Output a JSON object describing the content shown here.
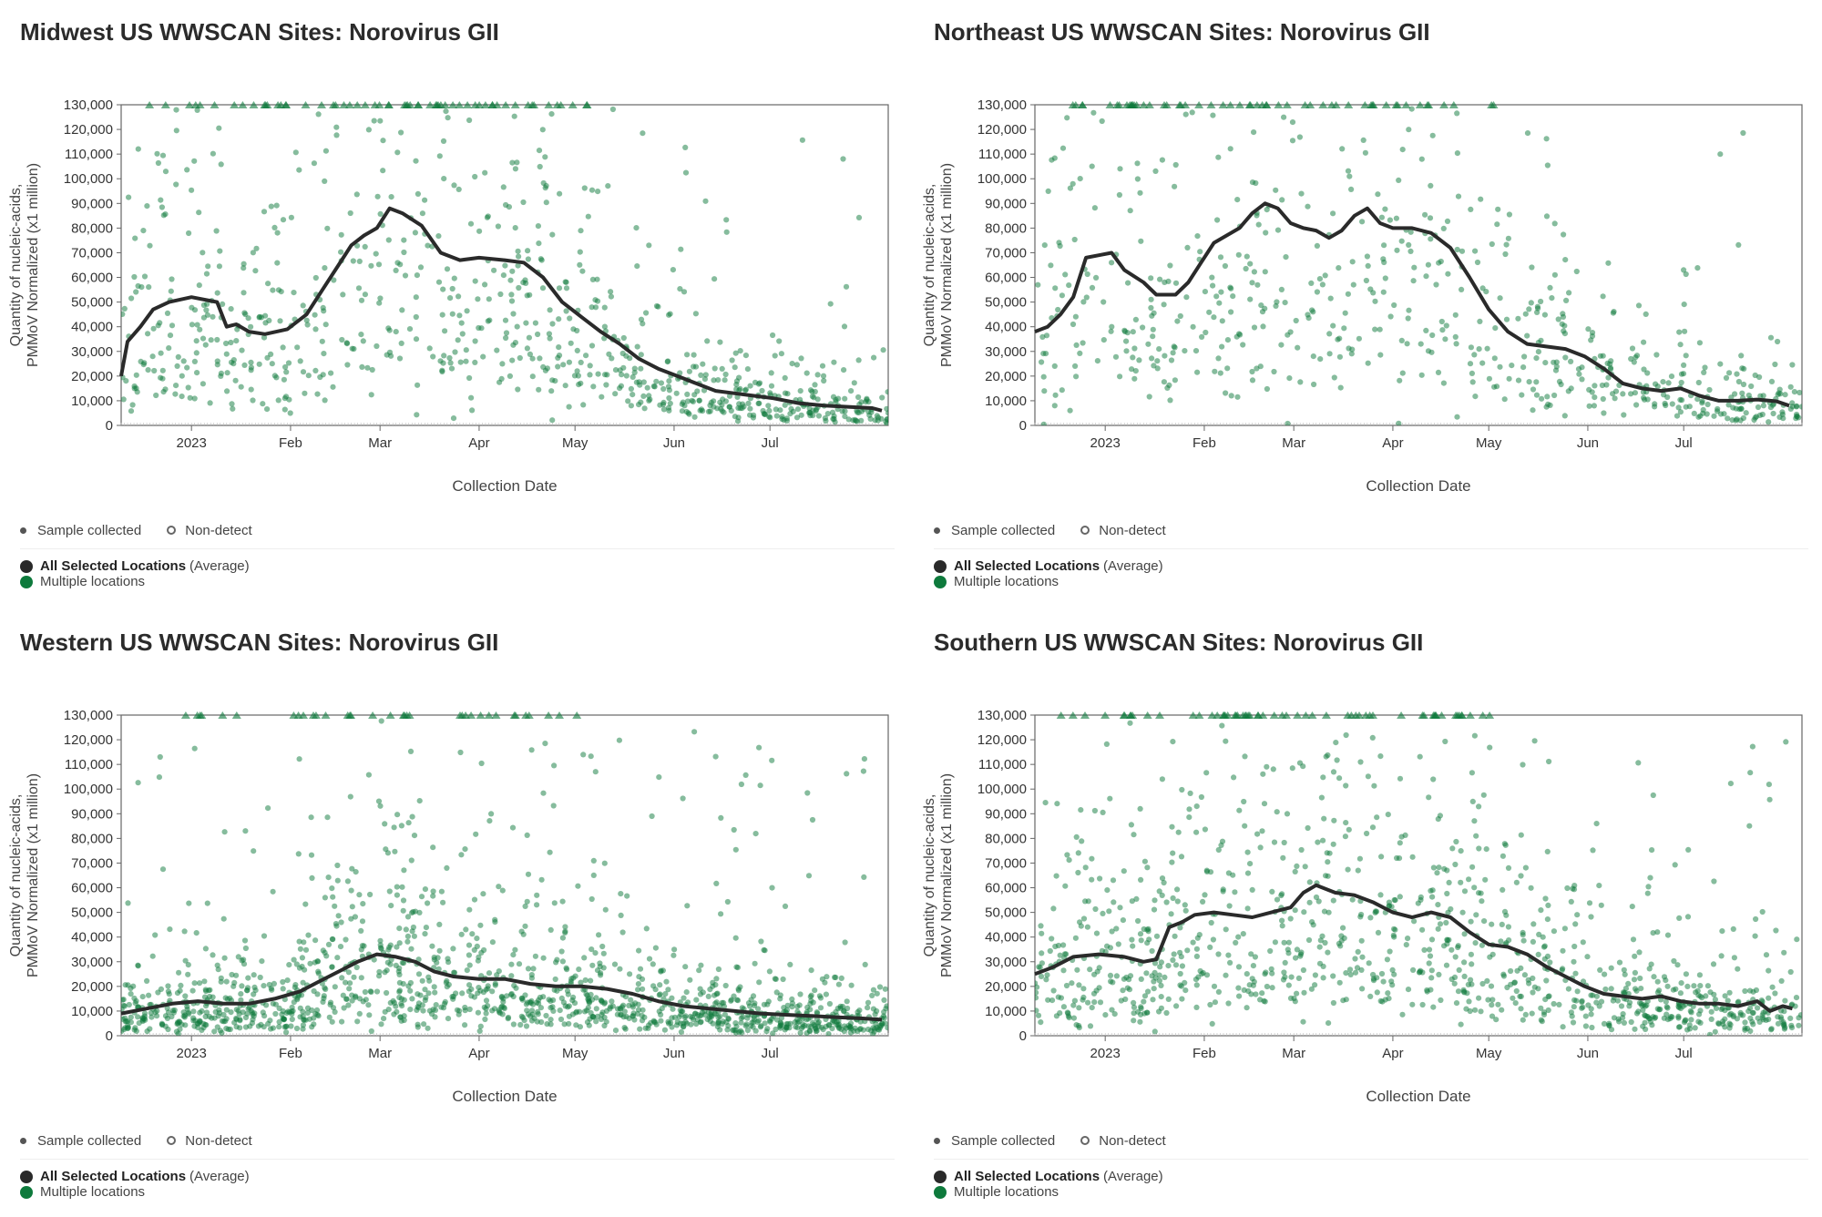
{
  "legend": {
    "sample_collected": "Sample collected",
    "non_detect": "Non-detect",
    "all_selected_bold": "All Selected Locations",
    "all_selected_suffix": "(Average)",
    "multiple_locations": "Multiple locations"
  },
  "colors": {
    "scatter": "#0e7a3c",
    "average_line": "#2a2a2a",
    "frame": "#666666"
  },
  "chart_data": [
    {
      "type": "scatter",
      "title": "Midwest US WWSCAN Sites: Norovirus GII",
      "xlabel": "Collection Date",
      "ylabel_line1": "Quantity of nucleic-acids,",
      "ylabel_line2": "PMMoV Normalized (x1 million)",
      "xlim_days": [
        0,
        240
      ],
      "ylim": [
        0,
        130000
      ],
      "x_ticks": [
        {
          "day": 22,
          "label": "2023"
        },
        {
          "day": 53,
          "label": "Feb"
        },
        {
          "day": 81,
          "label": "Mar"
        },
        {
          "day": 112,
          "label": "Apr"
        },
        {
          "day": 142,
          "label": "May"
        },
        {
          "day": 173,
          "label": "Jun"
        },
        {
          "day": 203,
          "label": "Jul"
        }
      ],
      "y_ticks": [
        0,
        10000,
        20000,
        30000,
        40000,
        50000,
        60000,
        70000,
        80000,
        90000,
        100000,
        110000,
        120000,
        130000
      ],
      "average_series": [
        [
          0,
          20000
        ],
        [
          2,
          34000
        ],
        [
          6,
          40000
        ],
        [
          10,
          47000
        ],
        [
          15,
          50000
        ],
        [
          22,
          52000
        ],
        [
          30,
          50000
        ],
        [
          33,
          40000
        ],
        [
          36,
          41000
        ],
        [
          40,
          38000
        ],
        [
          45,
          37000
        ],
        [
          52,
          39000
        ],
        [
          58,
          45000
        ],
        [
          63,
          55000
        ],
        [
          68,
          65000
        ],
        [
          72,
          73000
        ],
        [
          76,
          77000
        ],
        [
          80,
          80000
        ],
        [
          84,
          88000
        ],
        [
          88,
          86000
        ],
        [
          94,
          81000
        ],
        [
          100,
          70000
        ],
        [
          106,
          67000
        ],
        [
          112,
          68000
        ],
        [
          120,
          67000
        ],
        [
          126,
          66000
        ],
        [
          132,
          60000
        ],
        [
          138,
          50000
        ],
        [
          144,
          44000
        ],
        [
          150,
          38000
        ],
        [
          156,
          33000
        ],
        [
          162,
          27000
        ],
        [
          168,
          23000
        ],
        [
          174,
          20000
        ],
        [
          180,
          17000
        ],
        [
          186,
          14000
        ],
        [
          192,
          13000
        ],
        [
          198,
          12000
        ],
        [
          204,
          11000
        ],
        [
          212,
          9000
        ],
        [
          220,
          8000
        ],
        [
          228,
          7500
        ],
        [
          235,
          7000
        ],
        [
          238,
          6000
        ]
      ],
      "series_name": "Multiple locations",
      "average_name": "All Selected Locations (Average)"
    },
    {
      "type": "scatter",
      "title": "Northeast US WWSCAN Sites: Norovirus GII",
      "xlabel": "Collection Date",
      "ylabel_line1": "Quantity of nucleic-acids,",
      "ylabel_line2": "PMMoV Normalized (x1 million)",
      "xlim_days": [
        0,
        240
      ],
      "ylim": [
        0,
        130000
      ],
      "x_ticks": [
        {
          "day": 22,
          "label": "2023"
        },
        {
          "day": 53,
          "label": "Feb"
        },
        {
          "day": 81,
          "label": "Mar"
        },
        {
          "day": 112,
          "label": "Apr"
        },
        {
          "day": 142,
          "label": "May"
        },
        {
          "day": 173,
          "label": "Jun"
        },
        {
          "day": 203,
          "label": "Jul"
        }
      ],
      "y_ticks": [
        0,
        10000,
        20000,
        30000,
        40000,
        50000,
        60000,
        70000,
        80000,
        90000,
        100000,
        110000,
        120000,
        130000
      ],
      "average_series": [
        [
          0,
          38000
        ],
        [
          4,
          40000
        ],
        [
          8,
          45000
        ],
        [
          12,
          52000
        ],
        [
          16,
          68000
        ],
        [
          20,
          69000
        ],
        [
          24,
          70000
        ],
        [
          28,
          63000
        ],
        [
          34,
          58000
        ],
        [
          38,
          53000
        ],
        [
          44,
          53000
        ],
        [
          48,
          58000
        ],
        [
          52,
          66000
        ],
        [
          56,
          74000
        ],
        [
          60,
          77000
        ],
        [
          64,
          80000
        ],
        [
          68,
          86000
        ],
        [
          72,
          90000
        ],
        [
          76,
          88000
        ],
        [
          80,
          82000
        ],
        [
          84,
          80000
        ],
        [
          88,
          79000
        ],
        [
          92,
          76000
        ],
        [
          96,
          79000
        ],
        [
          100,
          85000
        ],
        [
          104,
          88000
        ],
        [
          108,
          82000
        ],
        [
          112,
          80000
        ],
        [
          118,
          80000
        ],
        [
          124,
          78000
        ],
        [
          130,
          72000
        ],
        [
          136,
          60000
        ],
        [
          142,
          47000
        ],
        [
          148,
          38000
        ],
        [
          154,
          33000
        ],
        [
          160,
          32000
        ],
        [
          166,
          31000
        ],
        [
          172,
          28000
        ],
        [
          178,
          23000
        ],
        [
          184,
          17000
        ],
        [
          190,
          15000
        ],
        [
          196,
          14000
        ],
        [
          202,
          15000
        ],
        [
          208,
          12000
        ],
        [
          214,
          10000
        ],
        [
          220,
          10000
        ],
        [
          226,
          10500
        ],
        [
          232,
          9800
        ],
        [
          236,
          8000
        ]
      ],
      "series_name": "Multiple locations",
      "average_name": "All Selected Locations (Average)"
    },
    {
      "type": "scatter",
      "title": "Western US WWSCAN Sites: Norovirus GII",
      "xlabel": "Collection Date",
      "ylabel_line1": "Quantity of nucleic-acids,",
      "ylabel_line2": "PMMoV Normalized (x1 million)",
      "xlim_days": [
        0,
        240
      ],
      "ylim": [
        0,
        130000
      ],
      "x_ticks": [
        {
          "day": 22,
          "label": "2023"
        },
        {
          "day": 53,
          "label": "Feb"
        },
        {
          "day": 81,
          "label": "Mar"
        },
        {
          "day": 112,
          "label": "Apr"
        },
        {
          "day": 142,
          "label": "May"
        },
        {
          "day": 173,
          "label": "Jun"
        },
        {
          "day": 203,
          "label": "Jul"
        }
      ],
      "y_ticks": [
        0,
        10000,
        20000,
        30000,
        40000,
        50000,
        60000,
        70000,
        80000,
        90000,
        100000,
        110000,
        120000,
        130000
      ],
      "average_series": [
        [
          0,
          9000
        ],
        [
          8,
          11000
        ],
        [
          16,
          13000
        ],
        [
          24,
          14000
        ],
        [
          32,
          13000
        ],
        [
          40,
          13000
        ],
        [
          48,
          15000
        ],
        [
          56,
          18000
        ],
        [
          62,
          22000
        ],
        [
          68,
          26000
        ],
        [
          74,
          30000
        ],
        [
          80,
          33000
        ],
        [
          86,
          32000
        ],
        [
          92,
          30000
        ],
        [
          98,
          26000
        ],
        [
          104,
          24000
        ],
        [
          112,
          23000
        ],
        [
          120,
          23000
        ],
        [
          128,
          21000
        ],
        [
          136,
          20000
        ],
        [
          144,
          20000
        ],
        [
          152,
          19000
        ],
        [
          160,
          17000
        ],
        [
          168,
          14000
        ],
        [
          176,
          12000
        ],
        [
          184,
          11000
        ],
        [
          192,
          10000
        ],
        [
          200,
          9000
        ],
        [
          208,
          8500
        ],
        [
          216,
          8000
        ],
        [
          224,
          7500
        ],
        [
          232,
          7000
        ],
        [
          238,
          6500
        ]
      ],
      "series_name": "Multiple locations",
      "average_name": "All Selected Locations (Average)"
    },
    {
      "type": "scatter",
      "title": "Southern US WWSCAN Sites: Norovirus GII",
      "xlabel": "Collection Date",
      "ylabel_line1": "Quantity of nucleic-acids,",
      "ylabel_line2": "PMMoV Normalized (x1 million)",
      "xlim_days": [
        0,
        240
      ],
      "ylim": [
        0,
        130000
      ],
      "x_ticks": [
        {
          "day": 22,
          "label": "2023"
        },
        {
          "day": 53,
          "label": "Feb"
        },
        {
          "day": 81,
          "label": "Mar"
        },
        {
          "day": 112,
          "label": "Apr"
        },
        {
          "day": 142,
          "label": "May"
        },
        {
          "day": 173,
          "label": "Jun"
        },
        {
          "day": 203,
          "label": "Jul"
        }
      ],
      "y_ticks": [
        0,
        10000,
        20000,
        30000,
        40000,
        50000,
        60000,
        70000,
        80000,
        90000,
        100000,
        110000,
        120000,
        130000
      ],
      "average_series": [
        [
          0,
          25000
        ],
        [
          6,
          28000
        ],
        [
          12,
          32000
        ],
        [
          20,
          33000
        ],
        [
          28,
          32000
        ],
        [
          34,
          30000
        ],
        [
          38,
          31000
        ],
        [
          42,
          44000
        ],
        [
          46,
          46000
        ],
        [
          50,
          49000
        ],
        [
          56,
          50000
        ],
        [
          62,
          49000
        ],
        [
          68,
          48000
        ],
        [
          74,
          50000
        ],
        [
          80,
          52000
        ],
        [
          84,
          58000
        ],
        [
          88,
          61000
        ],
        [
          94,
          58000
        ],
        [
          100,
          57000
        ],
        [
          106,
          54000
        ],
        [
          112,
          50000
        ],
        [
          118,
          48000
        ],
        [
          124,
          50000
        ],
        [
          130,
          48000
        ],
        [
          136,
          42000
        ],
        [
          142,
          37000
        ],
        [
          148,
          36000
        ],
        [
          154,
          33000
        ],
        [
          160,
          28000
        ],
        [
          166,
          24000
        ],
        [
          172,
          20000
        ],
        [
          178,
          17000
        ],
        [
          184,
          16000
        ],
        [
          190,
          15000
        ],
        [
          196,
          16000
        ],
        [
          202,
          14000
        ],
        [
          208,
          13000
        ],
        [
          214,
          13000
        ],
        [
          220,
          12000
        ],
        [
          226,
          14000
        ],
        [
          230,
          10000
        ],
        [
          234,
          12000
        ],
        [
          237,
          11000
        ]
      ],
      "series_name": "Multiple locations",
      "average_name": "All Selected Locations (Average)"
    }
  ]
}
